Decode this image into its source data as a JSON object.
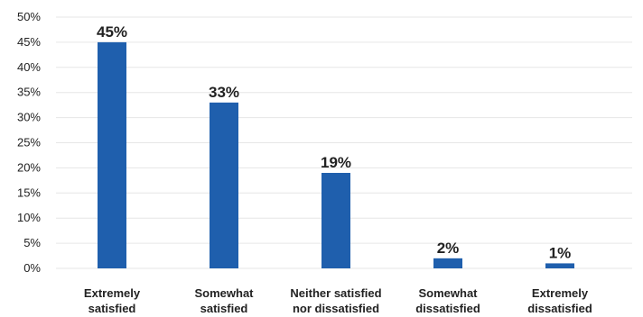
{
  "chart_data": {
    "type": "bar",
    "categories": [
      [
        "Extremely",
        "satisfied"
      ],
      [
        "Somewhat",
        "satisfied"
      ],
      [
        "Neither satisfied",
        "nor dissatisfied"
      ],
      [
        "Somewhat",
        "dissatisfied"
      ],
      [
        "Extremely",
        "dissatisfied"
      ]
    ],
    "values": [
      45,
      33,
      19,
      2,
      1
    ],
    "data_labels": [
      "45%",
      "33%",
      "19%",
      "2%",
      "1%"
    ],
    "ylim": [
      0,
      50
    ],
    "yticks": [
      0,
      5,
      10,
      15,
      20,
      25,
      30,
      35,
      40,
      45,
      50
    ],
    "ytick_labels": [
      "0%",
      "5%",
      "10%",
      "15%",
      "20%",
      "25%",
      "30%",
      "35%",
      "40%",
      "45%",
      "50%"
    ],
    "grid": true,
    "bar_color": "#1f5fad",
    "title": "",
    "xlabel": "",
    "ylabel": ""
  }
}
